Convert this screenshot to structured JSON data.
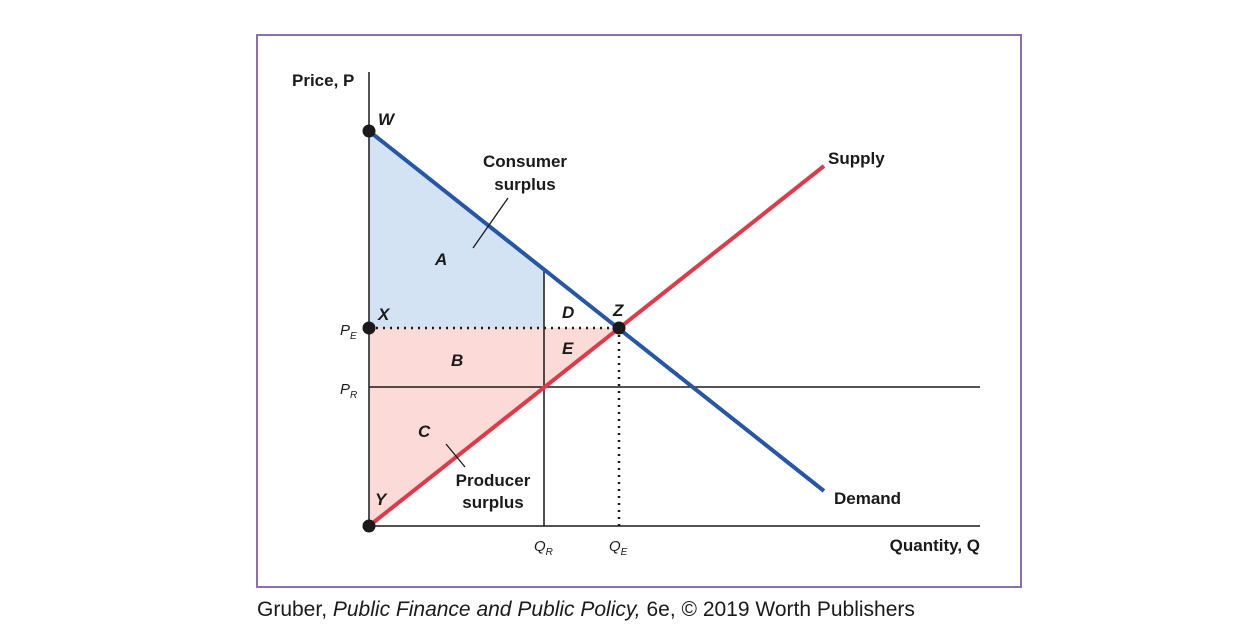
{
  "colors": {
    "frame": "#8c6fae",
    "demand": "#2556a8",
    "supply": "#e03a4a",
    "consumer_fill": "#d4e3f4",
    "producer_fill": "#fbdad8",
    "axis": "#1a1a1a"
  },
  "axes": {
    "y_label": "Price, P",
    "x_label": "Quantity, Q"
  },
  "ticks": {
    "pe": {
      "main": "P",
      "sub": "E"
    },
    "pr": {
      "main": "P",
      "sub": "R"
    },
    "qr": {
      "main": "Q",
      "sub": "R"
    },
    "qe": {
      "main": "Q",
      "sub": "E"
    }
  },
  "points": {
    "w": "W",
    "x": "X",
    "y": "Y",
    "z": "Z"
  },
  "areas": {
    "a": "A",
    "b": "B",
    "c": "C",
    "d": "D",
    "e": "E"
  },
  "curves": {
    "supply": "Supply",
    "demand": "Demand"
  },
  "annotations": {
    "consumer_line1": "Consumer",
    "consumer_line2": "surplus",
    "producer_line1": "Producer",
    "producer_line2": "surplus"
  },
  "caption": {
    "author": "Gruber, ",
    "title": "Public Finance and Public Policy,",
    "rest": " 6e, © 2019 Worth Publishers"
  }
}
